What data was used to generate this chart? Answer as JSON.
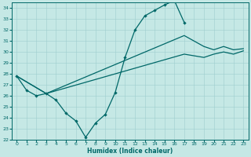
{
  "xlabel": "Humidex (Indice chaleur)",
  "xlim": [
    -0.5,
    23.5
  ],
  "ylim": [
    22,
    34.5
  ],
  "yticks": [
    22,
    23,
    24,
    25,
    26,
    27,
    28,
    29,
    30,
    31,
    32,
    33,
    34
  ],
  "xticks": [
    0,
    1,
    2,
    3,
    4,
    5,
    6,
    7,
    8,
    9,
    10,
    11,
    12,
    13,
    14,
    15,
    16,
    17,
    18,
    19,
    20,
    21,
    22,
    23
  ],
  "bg_color": "#c5e8e5",
  "line_color": "#006868",
  "line1_x": [
    0,
    1,
    2,
    3,
    4,
    5,
    6,
    7,
    8,
    9,
    10,
    11,
    12,
    13,
    14,
    15,
    16,
    17
  ],
  "line1_y": [
    27.8,
    26.5,
    26.0,
    26.2,
    25.6,
    24.4,
    23.7,
    22.2,
    23.5,
    24.3,
    26.3,
    29.5,
    32.0,
    33.3,
    33.8,
    34.3,
    34.7,
    32.7
  ],
  "line2_x": [
    0,
    3,
    17,
    19,
    20,
    21,
    22,
    23
  ],
  "line2_y": [
    27.8,
    26.2,
    31.5,
    30.5,
    30.2,
    30.5,
    30.2,
    30.3
  ],
  "line3_x": [
    0,
    3,
    17,
    19,
    20,
    21,
    22,
    23
  ],
  "line3_y": [
    27.8,
    26.2,
    29.8,
    29.5,
    29.8,
    30.0,
    29.8,
    30.1
  ]
}
